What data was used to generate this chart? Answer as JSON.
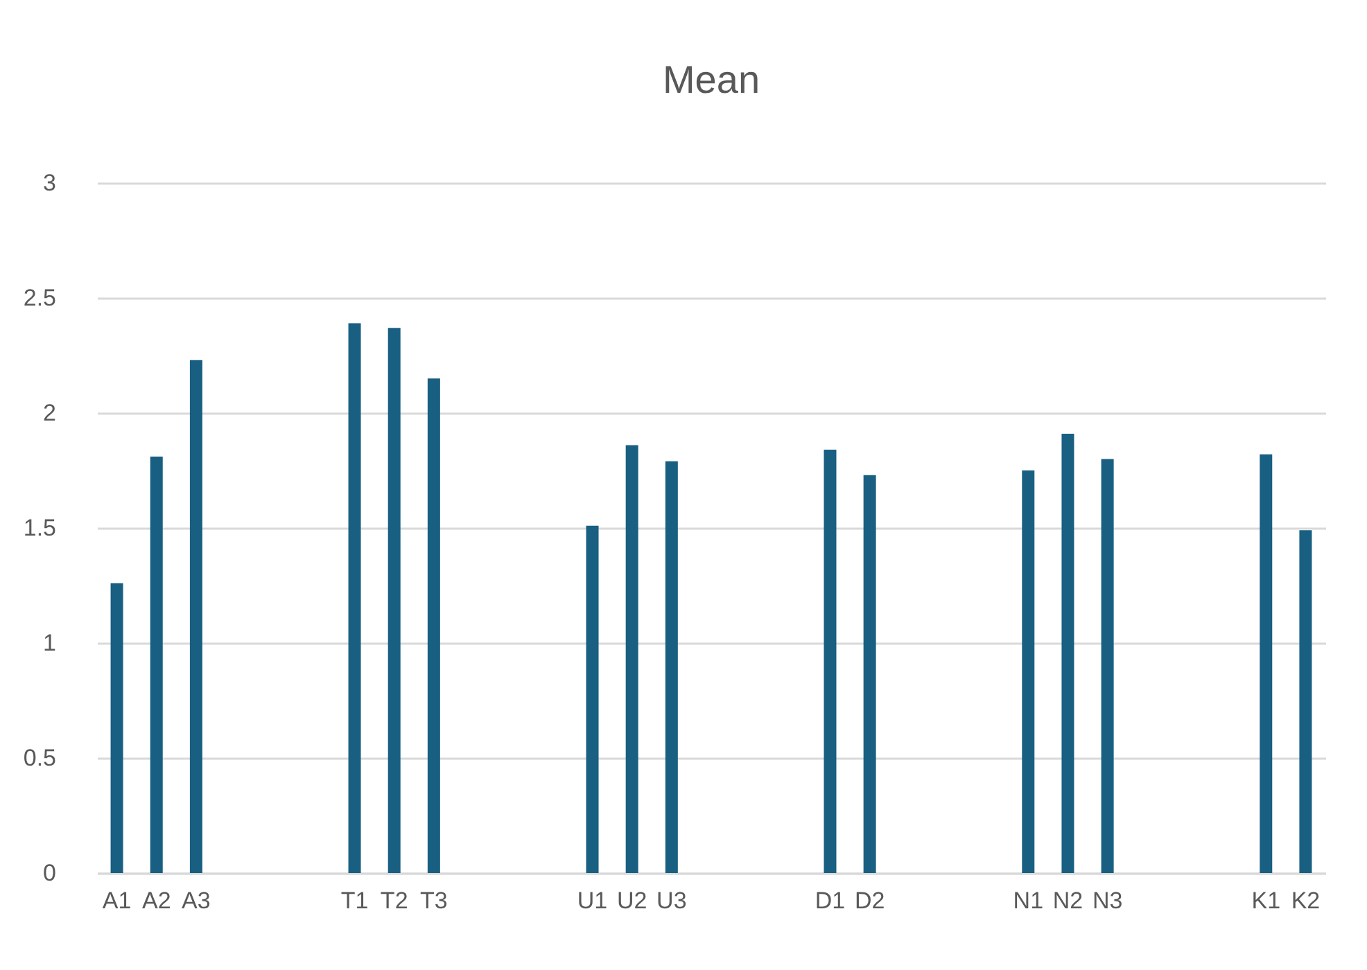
{
  "chart_data": {
    "type": "bar",
    "title": "Mean",
    "categories": [
      "A1",
      "A2",
      "A3",
      null,
      null,
      null,
      "T1",
      "T2",
      "T3",
      null,
      null,
      null,
      "U1",
      "U2",
      "U3",
      null,
      null,
      null,
      "D1",
      "D2",
      null,
      null,
      null,
      "N1",
      "N2",
      "N3",
      null,
      null,
      null,
      "K1",
      "K2"
    ],
    "values": [
      1.26,
      1.81,
      2.23,
      null,
      null,
      null,
      2.39,
      2.37,
      2.15,
      null,
      null,
      null,
      1.51,
      1.86,
      1.79,
      null,
      null,
      null,
      1.84,
      1.73,
      null,
      null,
      null,
      1.75,
      1.91,
      1.8,
      null,
      null,
      null,
      1.82,
      1.49
    ],
    "color": "#185f82",
    "ylim": [
      0,
      3
    ],
    "yticks": [
      0,
      0.5,
      1,
      1.5,
      2,
      2.5,
      3
    ],
    "grid": true
  }
}
